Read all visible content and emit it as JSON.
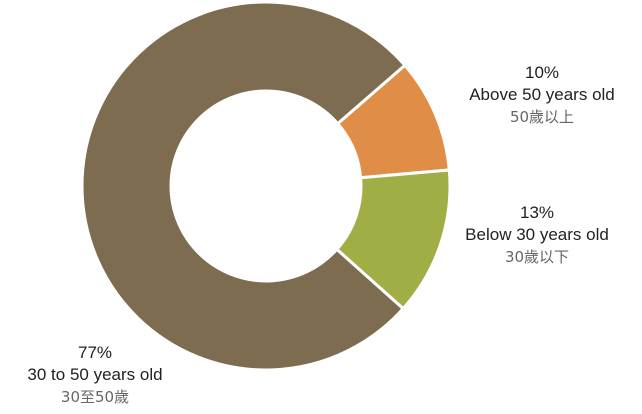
{
  "chart_data": {
    "type": "pie",
    "donut": true,
    "slices": [
      {
        "value": 10,
        "percent_label": "10%",
        "label_en": "Above 50 years old",
        "label_zh": "50歲以上",
        "color": "#E08E47"
      },
      {
        "value": 13,
        "percent_label": "13%",
        "label_en": "Below 30 years old",
        "label_zh": "30歲以下",
        "color": "#A1AD45"
      },
      {
        "value": 77,
        "percent_label": "77%",
        "label_en": "30 to 50 years old",
        "label_zh": "30至50歲",
        "color": "#7E6C51"
      }
    ]
  }
}
